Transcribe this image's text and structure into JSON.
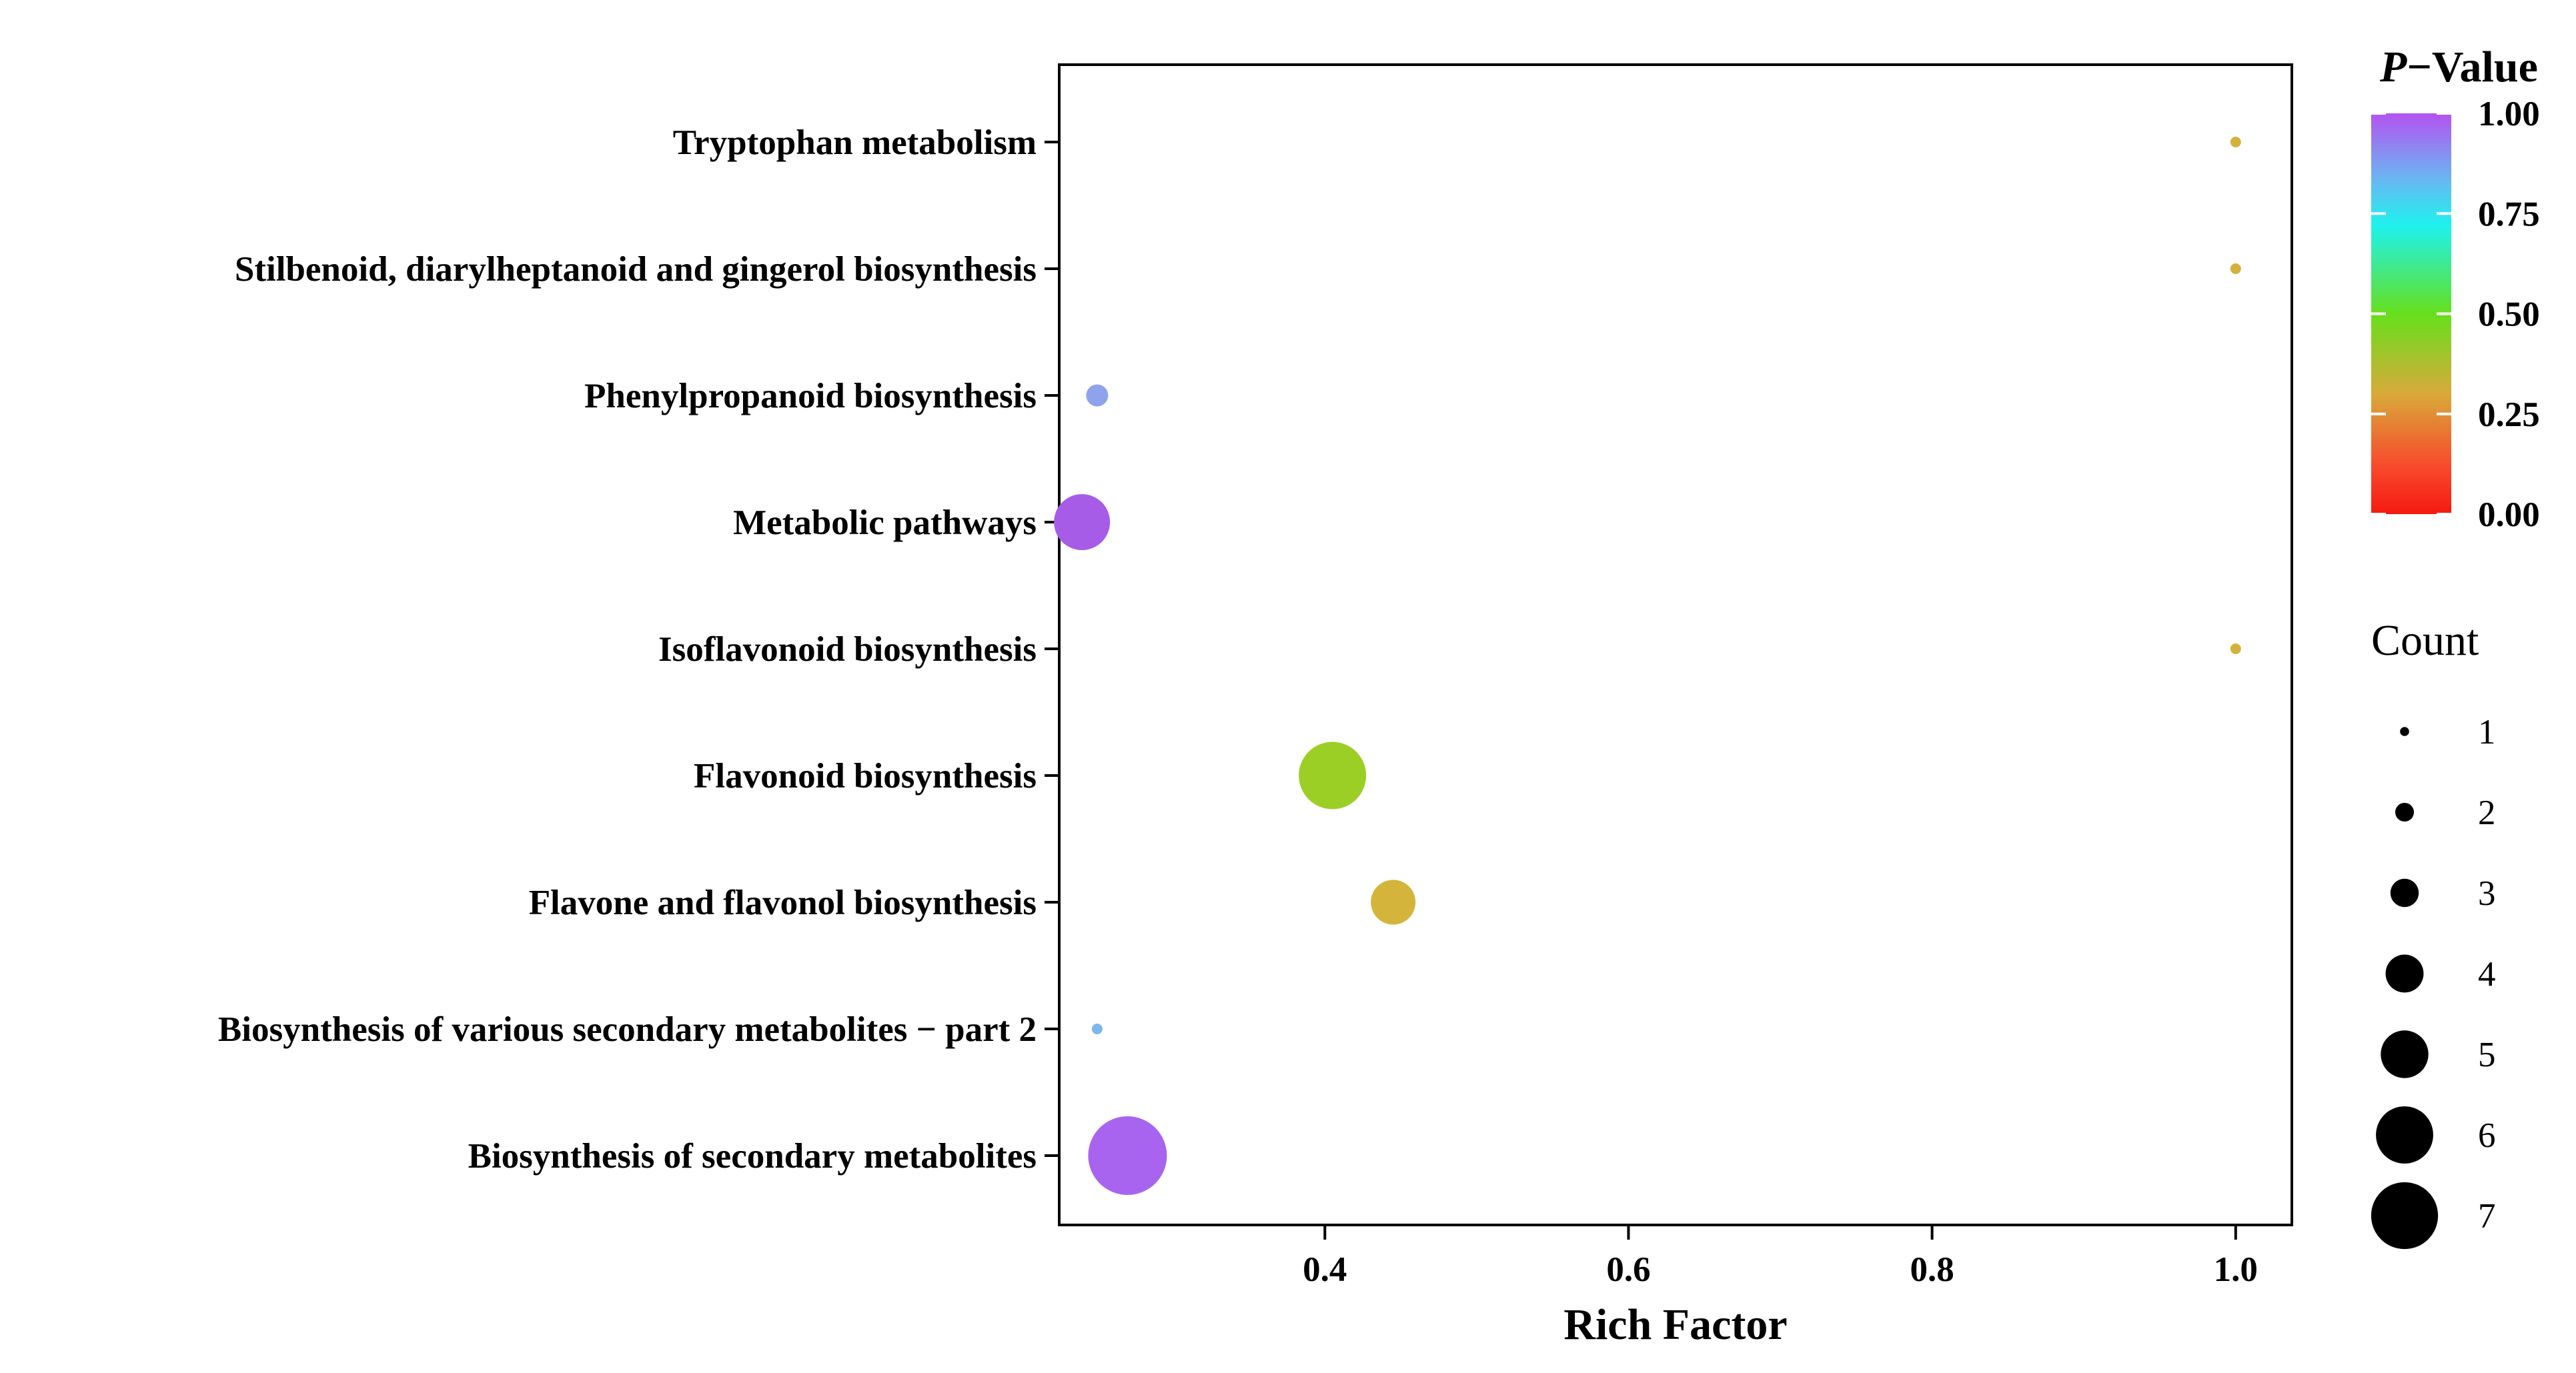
{
  "chart_data": {
    "type": "scatter",
    "xlabel": "Rich Factor",
    "ylabel": "",
    "xlim": [
      0.225,
      1.037
    ],
    "xticks": [
      {
        "value": 0.4,
        "label": "0.4"
      },
      {
        "value": 0.6,
        "label": "0.6"
      },
      {
        "value": 0.8,
        "label": "0.8"
      },
      {
        "value": 1.0,
        "label": "1.0"
      }
    ],
    "categories": [
      "Tryptophan metabolism",
      "Stilbenoid, diarylheptanoid and gingerol biosynthesis",
      "Phenylpropanoid biosynthesis",
      "Metabolic pathways",
      "Isoflavonoid biosynthesis",
      "Flavonoid biosynthesis",
      "Flavone and flavonol biosynthesis",
      "Biosynthesis of various secondary metabolites − part 2",
      "Biosynthesis of secondary metabolites"
    ],
    "points": [
      {
        "pathway": "Tryptophan metabolism",
        "rich_factor": 1.0,
        "count": 1,
        "p_value": 0.3,
        "color": "#d4b13a"
      },
      {
        "pathway": "Stilbenoid, diarylheptanoid and gingerol biosynthesis",
        "rich_factor": 1.0,
        "count": 1,
        "p_value": 0.3,
        "color": "#d4b13a"
      },
      {
        "pathway": "Phenylpropanoid biosynthesis",
        "rich_factor": 0.25,
        "count": 2,
        "p_value": 0.9,
        "color": "#8fa2ec"
      },
      {
        "pathway": "Metabolic pathways",
        "rich_factor": 0.24,
        "count": 5,
        "p_value": 1.0,
        "color": "#a75ce8"
      },
      {
        "pathway": "Isoflavonoid biosynthesis",
        "rich_factor": 1.0,
        "count": 1,
        "p_value": 0.3,
        "color": "#d4b13a"
      },
      {
        "pathway": "Flavonoid biosynthesis",
        "rich_factor": 0.405,
        "count": 6,
        "p_value": 0.47,
        "color": "#9ccf26"
      },
      {
        "pathway": "Flavone and flavonol biosynthesis",
        "rich_factor": 0.445,
        "count": 4,
        "p_value": 0.3,
        "color": "#d4b43a"
      },
      {
        "pathway": "Biosynthesis of various secondary metabolites − part 2",
        "rich_factor": 0.25,
        "count": 1,
        "p_value": 0.82,
        "color": "#7db6ee"
      },
      {
        "pathway": "Biosynthesis of secondary metabolites",
        "rich_factor": 0.27,
        "count": 7,
        "p_value": 0.98,
        "color": "#a864ee"
      }
    ],
    "color_legend": {
      "title_italic": "P",
      "title_rest": "−Value",
      "ticks": [
        {
          "value": 1.0,
          "label": "1.00"
        },
        {
          "value": 0.75,
          "label": "0.75"
        },
        {
          "value": 0.5,
          "label": "0.50"
        },
        {
          "value": 0.25,
          "label": "0.25"
        },
        {
          "value": 0.0,
          "label": "0.00"
        }
      ],
      "gradient": [
        {
          "value": 1.0,
          "color": "#b452f0"
        },
        {
          "value": 0.84,
          "color": "#6cb4f2"
        },
        {
          "value": 0.72,
          "color": "#1ef2ee"
        },
        {
          "value": 0.5,
          "color": "#66e01c"
        },
        {
          "value": 0.3,
          "color": "#d8aa3a"
        },
        {
          "value": 0.12,
          "color": "#f84a2c"
        },
        {
          "value": 0.0,
          "color": "#f41a10"
        }
      ]
    },
    "size_legend": {
      "title": "Count",
      "entries": [
        {
          "count": 1,
          "label": "1"
        },
        {
          "count": 2,
          "label": "2"
        },
        {
          "count": 3,
          "label": "3"
        },
        {
          "count": 4,
          "label": "4"
        },
        {
          "count": 5,
          "label": "5"
        },
        {
          "count": 6,
          "label": "6"
        },
        {
          "count": 7,
          "label": "7"
        }
      ]
    }
  }
}
